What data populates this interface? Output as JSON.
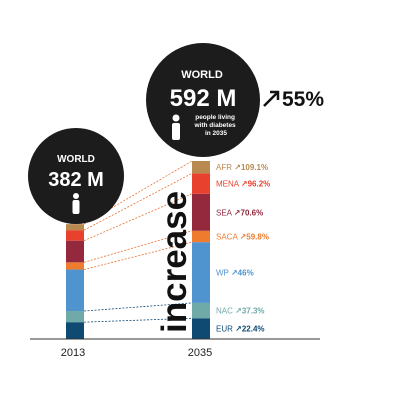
{
  "chart_data": {
    "type": "bar",
    "title": "",
    "categories": [
      "2013",
      "2035"
    ],
    "ylim": [
      0,
      592
    ],
    "totals": [
      382,
      592
    ],
    "total_labels": [
      {
        "heading": "WORLD",
        "value": "382 M",
        "caption": ""
      },
      {
        "heading": "WORLD",
        "value": "592 M",
        "caption": "people living with diabetes in 2035"
      }
    ],
    "overall_increase": "55%",
    "side_word": "increase",
    "series": [
      {
        "name": "EUR",
        "values": [
          56,
          69
        ],
        "color": "#0f4a73",
        "increase": "22.4%"
      },
      {
        "name": "NAC",
        "values": [
          37,
          51
        ],
        "color": "#6fa9a8",
        "increase": "37.3%"
      },
      {
        "name": "WP",
        "values": [
          138,
          202
        ],
        "color": "#4f93cf",
        "increase": "46%"
      },
      {
        "name": "SACA",
        "values": [
          24,
          38
        ],
        "color": "#ef7b2f",
        "increase": "59.8%"
      },
      {
        "name": "SEA",
        "values": [
          72,
          123
        ],
        "color": "#94283d",
        "increase": "70.6%"
      },
      {
        "name": "MENA",
        "values": [
          35,
          68
        ],
        "color": "#e8412e",
        "increase": "96.2%"
      },
      {
        "name": "AFR",
        "values": [
          20,
          41
        ],
        "color": "#b88a4f",
        "increase": "109.1%"
      }
    ],
    "connector_color": "#e8712e",
    "grid": false
  }
}
